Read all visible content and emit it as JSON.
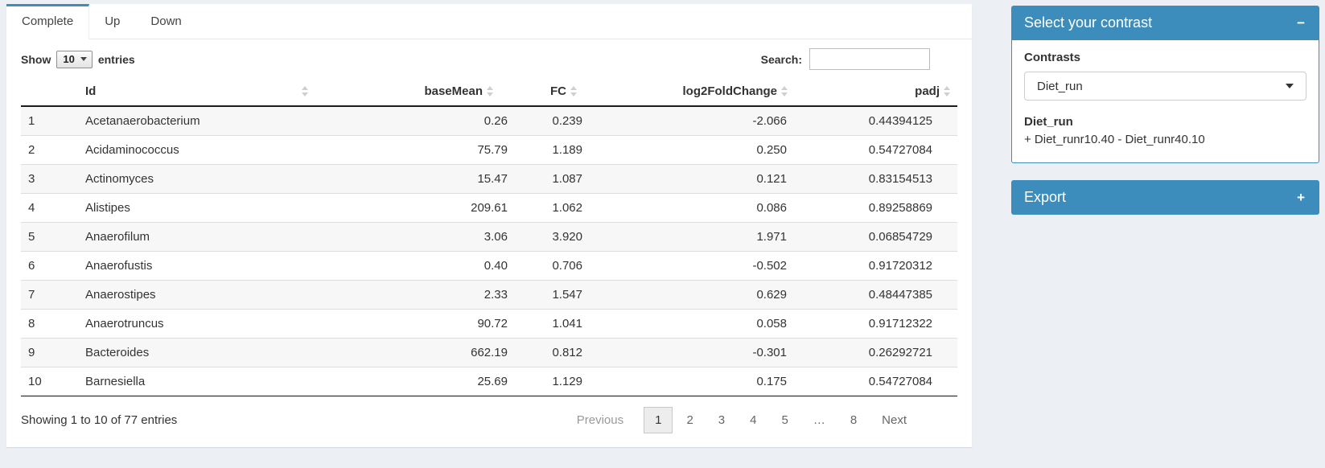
{
  "colors": {
    "primary": "#3c8dbc",
    "page_background": "#ecf0f5",
    "stripe": "#f7f7f7"
  },
  "tabs": [
    {
      "label": "Complete",
      "active": true
    },
    {
      "label": "Up",
      "active": false
    },
    {
      "label": "Down",
      "active": false
    }
  ],
  "length_control": {
    "prefix": "Show",
    "value": "10",
    "suffix": "entries"
  },
  "search": {
    "label": "Search:",
    "value": ""
  },
  "table": {
    "columns": [
      {
        "label": "",
        "align": "left",
        "sortable": false
      },
      {
        "label": "Id",
        "align": "left",
        "sortable": true
      },
      {
        "label": "baseMean",
        "align": "right",
        "sortable": true
      },
      {
        "label": "FC",
        "align": "right",
        "sortable": true
      },
      {
        "label": "log2FoldChange",
        "align": "right",
        "sortable": true
      },
      {
        "label": "padj",
        "align": "right",
        "sortable": true
      }
    ],
    "rows": [
      [
        "1",
        "Acetanaerobacterium",
        "0.26",
        "0.239",
        "-2.066",
        "0.44394125"
      ],
      [
        "2",
        "Acidaminococcus",
        "75.79",
        "1.189",
        "0.250",
        "0.54727084"
      ],
      [
        "3",
        "Actinomyces",
        "15.47",
        "1.087",
        "0.121",
        "0.83154513"
      ],
      [
        "4",
        "Alistipes",
        "209.61",
        "1.062",
        "0.086",
        "0.89258869"
      ],
      [
        "5",
        "Anaerofilum",
        "3.06",
        "3.920",
        "1.971",
        "0.06854729"
      ],
      [
        "6",
        "Anaerofustis",
        "0.40",
        "0.706",
        "-0.502",
        "0.91720312"
      ],
      [
        "7",
        "Anaerostipes",
        "2.33",
        "1.547",
        "0.629",
        "0.48447385"
      ],
      [
        "8",
        "Anaerotruncus",
        "90.72",
        "1.041",
        "0.058",
        "0.91712322"
      ],
      [
        "9",
        "Bacteroides",
        "662.19",
        "0.812",
        "-0.301",
        "0.26292721"
      ],
      [
        "10",
        "Barnesiella",
        "25.69",
        "1.129",
        "0.175",
        "0.54727084"
      ]
    ]
  },
  "footer": {
    "info": "Showing 1 to 10 of 77 entries",
    "pagination": {
      "items": [
        {
          "label": "Previous",
          "type": "prev",
          "state": "disabled"
        },
        {
          "label": "1",
          "type": "page",
          "state": "active"
        },
        {
          "label": "2",
          "type": "page",
          "state": "normal"
        },
        {
          "label": "3",
          "type": "page",
          "state": "normal"
        },
        {
          "label": "4",
          "type": "page",
          "state": "normal"
        },
        {
          "label": "5",
          "type": "page",
          "state": "normal"
        },
        {
          "label": "…",
          "type": "ellipsis",
          "state": "disabled"
        },
        {
          "label": "8",
          "type": "page",
          "state": "normal"
        },
        {
          "label": "Next",
          "type": "next",
          "state": "normal"
        }
      ]
    }
  },
  "sidebar": {
    "contrast_box": {
      "title": "Select your contrast",
      "collapse_icon": "−",
      "field_label": "Contrasts",
      "selected_contrast": "Diet_run",
      "detail_name": "Diet_run",
      "detail_formula": "+ Diet_runr10.40 - Diet_runr40.10"
    },
    "export_box": {
      "title": "Export",
      "collapse_icon": "+"
    }
  }
}
